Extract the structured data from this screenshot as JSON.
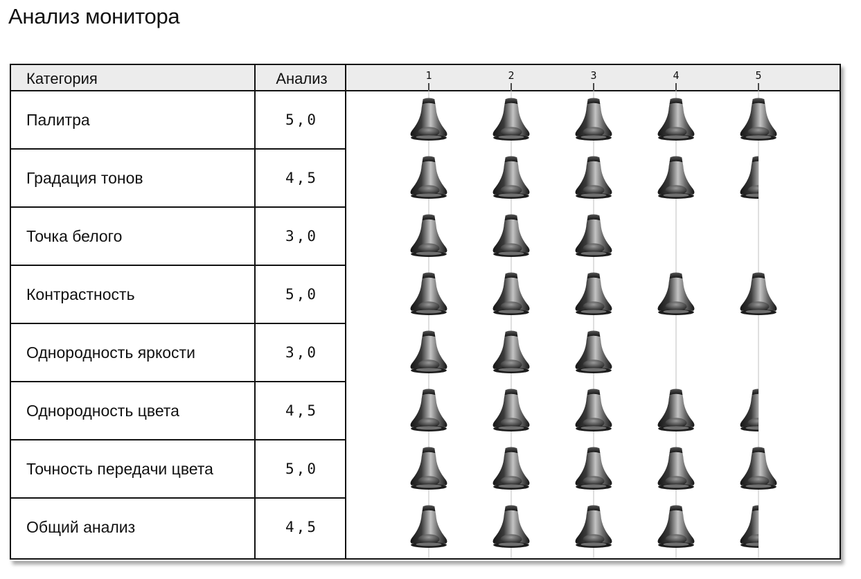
{
  "title": "Анализ монитора",
  "table": {
    "header_category": "Категория",
    "header_analysis": "Анализ"
  },
  "chart_data": {
    "type": "bar",
    "x_ticks": [
      "1",
      "2",
      "3",
      "4",
      "5"
    ],
    "xlim": [
      0,
      5
    ],
    "categories": [
      "Палитра",
      "Градация тонов",
      "Точка белого",
      "Контрастность",
      "Однородность яркости",
      "Однородность цвета",
      "Точность передачи цвета",
      "Общий анализ"
    ],
    "score_labels": [
      "5,0",
      "4,5",
      "3,0",
      "5,0",
      "3,0",
      "4,5",
      "5,0",
      "4,5"
    ],
    "values": [
      5.0,
      4.5,
      3.0,
      5.0,
      3.0,
      4.5,
      5.0,
      4.5
    ],
    "icon": "bell-rating-icon",
    "grid": true,
    "colors": {
      "icon_dark": "#1a1a1a",
      "icon_light": "#c8c8c8",
      "header_bg": "#ececec",
      "grid": "#bfbfbf"
    }
  }
}
